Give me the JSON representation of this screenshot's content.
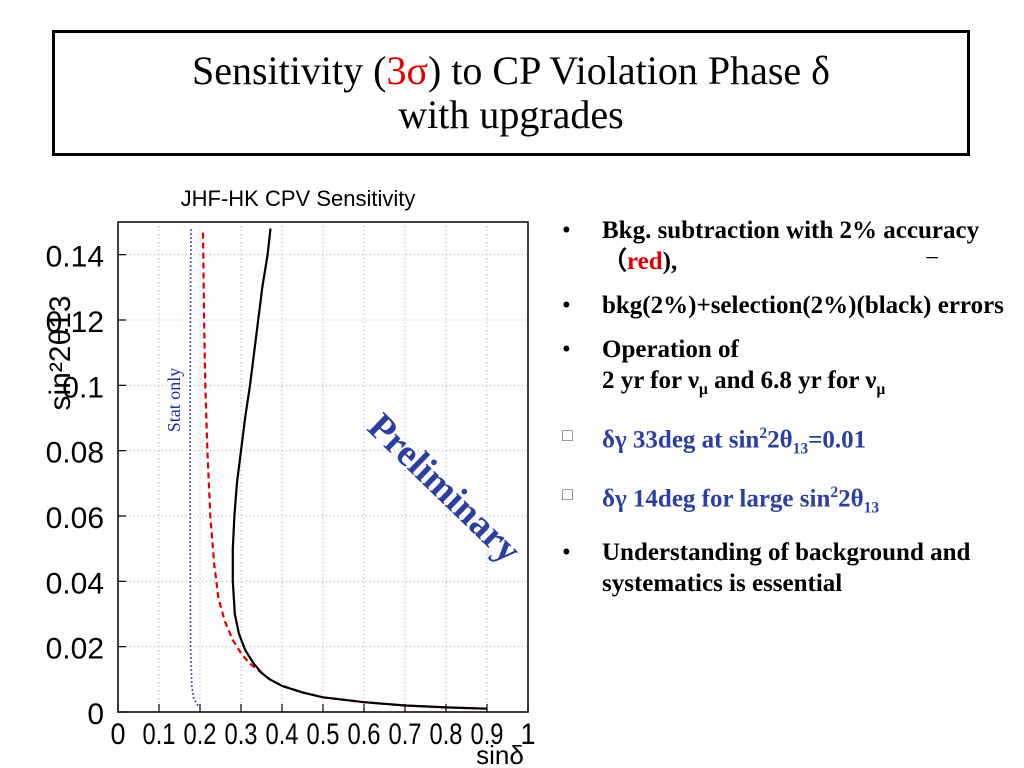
{
  "title": {
    "line1_pre": "Sensitivity (",
    "line1_red": "3σ",
    "line1_post": ") to CP Violation Phase δ",
    "line2": "with upgrades"
  },
  "chart_data": {
    "type": "line",
    "title": "JHF-HK CPV Sensitivity",
    "xlabel": "sinδ",
    "ylabel": "sin²2θ13",
    "xlim": [
      0,
      1
    ],
    "ylim": [
      0,
      0.15
    ],
    "xticks": [
      "0",
      "0.1",
      "0.2",
      "0.3",
      "0.4",
      "0.5",
      "0.6",
      "0.7",
      "0.8",
      "0.9",
      "1"
    ],
    "yticks": [
      "0",
      "0.02",
      "0.04",
      "0.06",
      "0.08",
      "0.1",
      "0.12",
      "0.14"
    ],
    "grid": true,
    "series": [
      {
        "name": "Stat only",
        "color": "#1a2fa8",
        "style": "dotted",
        "points": [
          [
            0.195,
            0.002
          ],
          [
            0.185,
            0.004
          ],
          [
            0.18,
            0.008
          ],
          [
            0.177,
            0.02
          ],
          [
            0.176,
            0.05
          ],
          [
            0.176,
            0.1
          ],
          [
            0.177,
            0.13
          ],
          [
            0.178,
            0.148
          ]
        ]
      },
      {
        "color": "#e00000",
        "style": "dashed",
        "points": [
          [
            0.9,
            0.001
          ],
          [
            0.8,
            0.0014
          ],
          [
            0.7,
            0.002
          ],
          [
            0.6,
            0.003
          ],
          [
            0.5,
            0.0045
          ],
          [
            0.45,
            0.006
          ],
          [
            0.4,
            0.008
          ],
          [
            0.37,
            0.01
          ],
          [
            0.35,
            0.012
          ],
          [
            0.32,
            0.015
          ],
          [
            0.3,
            0.018
          ],
          [
            0.28,
            0.022
          ],
          [
            0.26,
            0.028
          ],
          [
            0.245,
            0.035
          ],
          [
            0.235,
            0.045
          ],
          [
            0.225,
            0.06
          ],
          [
            0.218,
            0.08
          ],
          [
            0.213,
            0.1
          ],
          [
            0.21,
            0.12
          ],
          [
            0.208,
            0.14
          ],
          [
            0.207,
            0.148
          ]
        ]
      },
      {
        "color": "#000000",
        "style": "solid",
        "points": [
          [
            0.9,
            0.001
          ],
          [
            0.8,
            0.0014
          ],
          [
            0.7,
            0.002
          ],
          [
            0.6,
            0.003
          ],
          [
            0.5,
            0.0045
          ],
          [
            0.45,
            0.006
          ],
          [
            0.4,
            0.008
          ],
          [
            0.37,
            0.01
          ],
          [
            0.35,
            0.012
          ],
          [
            0.33,
            0.015
          ],
          [
            0.31,
            0.019
          ],
          [
            0.295,
            0.024
          ],
          [
            0.285,
            0.03
          ],
          [
            0.28,
            0.04
          ],
          [
            0.28,
            0.05
          ],
          [
            0.284,
            0.06
          ],
          [
            0.29,
            0.07
          ],
          [
            0.3,
            0.08
          ],
          [
            0.31,
            0.09
          ],
          [
            0.322,
            0.1
          ],
          [
            0.332,
            0.11
          ],
          [
            0.342,
            0.12
          ],
          [
            0.352,
            0.13
          ],
          [
            0.365,
            0.14
          ],
          [
            0.372,
            0.148
          ]
        ]
      }
    ],
    "annotations": [
      "Stat only",
      "Preliminary"
    ]
  },
  "bullets": {
    "b1_a": "Bkg.  subtraction with 2% accuracy（",
    "b1_red": "red",
    "b1_b": "),",
    "b1_dash": "−",
    "b2": "bkg(2%)+selection(2%)(black) errors",
    "b3_line1": "Operation of",
    "b3_a": "2 yr for ν",
    "b3_sub1": "μ",
    "b3_b": " and 6.8 yr for ν",
    "b3_sub2": "μ",
    "b4_a": "δγ 33deg at sin",
    "b4_sup": "2",
    "b4_b": "2θ",
    "b4_sub": "13",
    "b4_c": "=0.01",
    "b5_a": "δγ 14deg for large sin",
    "b5_sup": "2",
    "b5_b": "2θ",
    "b5_sub": "13",
    "b6": "Understanding of background and systematics  is essential",
    "bullet_char": "•",
    "box_char": "□"
  }
}
